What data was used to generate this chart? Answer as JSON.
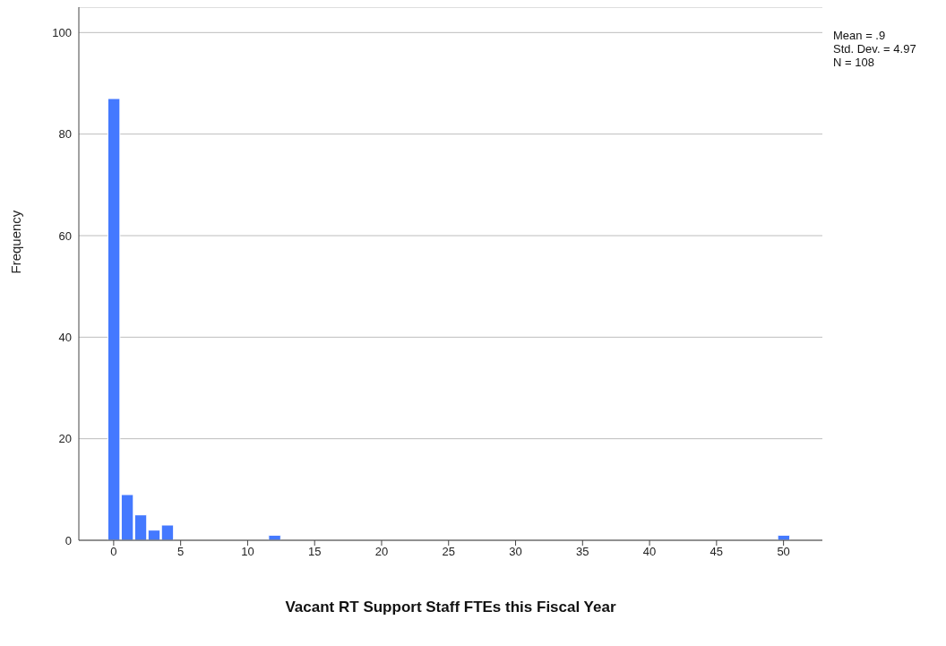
{
  "chart_data": {
    "type": "histogram",
    "xlabel": "Vacant RT Support Staff FTEs this Fiscal Year",
    "ylabel": "Frequency",
    "bins": [
      -0.5,
      0.5,
      1.5,
      2.5,
      3.5,
      4.5,
      5.5,
      6.5,
      7.5,
      8.5,
      9.5,
      10.5,
      11.5,
      12.5,
      13.5,
      14.5,
      15.5,
      16.5,
      17.5,
      18.5,
      19.5,
      20.5,
      21.5,
      22.5,
      23.5,
      24.5,
      25.5,
      26.5,
      27.5,
      28.5,
      29.5,
      30.5,
      31.5,
      32.5,
      33.5,
      34.5,
      35.5,
      36.5,
      37.5,
      38.5,
      39.5,
      40.5,
      41.5,
      42.5,
      43.5,
      44.5,
      45.5,
      46.5,
      47.5,
      48.5,
      49.5,
      50.5
    ],
    "values": [
      87,
      9,
      5,
      2,
      3,
      0,
      0,
      0,
      0,
      0,
      0,
      0,
      1,
      0,
      0,
      0,
      0,
      0,
      0,
      0,
      0,
      0,
      0,
      0,
      0,
      0,
      0,
      0,
      0,
      0,
      0,
      0,
      0,
      0,
      0,
      0,
      0,
      0,
      0,
      0,
      0,
      0,
      0,
      0,
      0,
      0,
      0,
      0,
      0,
      0,
      1
    ],
    "color": "#4479ff",
    "xlim": [
      -2.6,
      52.9
    ],
    "ylim": [
      0,
      105
    ],
    "xticks": [
      0,
      5,
      10,
      15,
      20,
      25,
      30,
      35,
      40,
      45,
      50
    ],
    "yticks": [
      0,
      20,
      40,
      60,
      80,
      100
    ],
    "grid": "y",
    "annotations": [
      "Mean = .9",
      "Std. Dev. = 4.97",
      "N = 108"
    ]
  }
}
